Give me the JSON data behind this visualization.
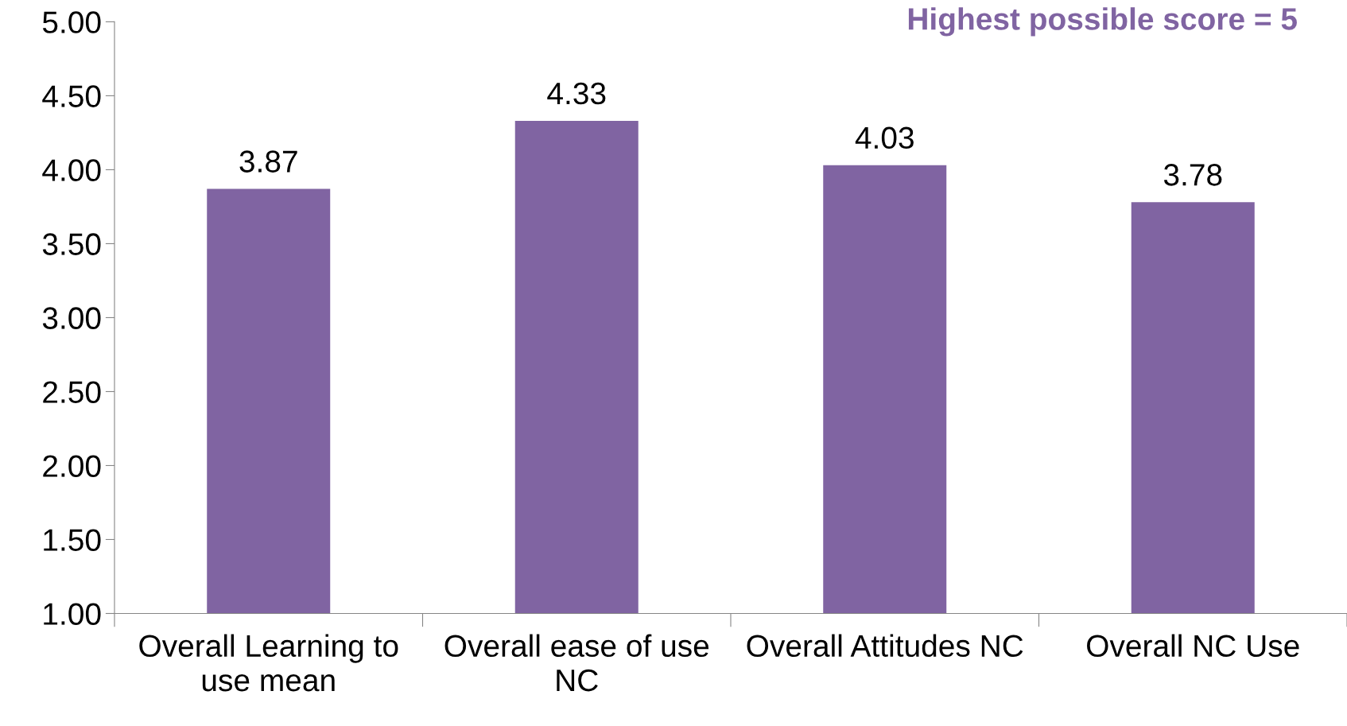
{
  "chart_data": {
    "type": "bar",
    "categories": [
      "Overall Learning to use mean",
      "Overall ease of use NC",
      "Overall Attitudes NC",
      "Overall NC Use"
    ],
    "values": [
      3.87,
      4.33,
      4.03,
      3.78
    ],
    "color": "#8064a2",
    "ylim": [
      1,
      5
    ],
    "yticks": [
      {
        "value": 1,
        "label": "1.00"
      },
      {
        "value": 1.5,
        "label": "1.50"
      },
      {
        "value": 2,
        "label": "2.00"
      },
      {
        "value": 2.5,
        "label": "2.50"
      },
      {
        "value": 3,
        "label": "3.00"
      },
      {
        "value": 3.5,
        "label": "3.50"
      },
      {
        "value": 4,
        "label": "4.00"
      },
      {
        "value": 4.5,
        "label": "4.50"
      },
      {
        "value": 5,
        "label": "5.00"
      }
    ],
    "data_labels": true,
    "grid": false,
    "legend": false,
    "annotations": [
      "Highest possible score = 5"
    ]
  }
}
